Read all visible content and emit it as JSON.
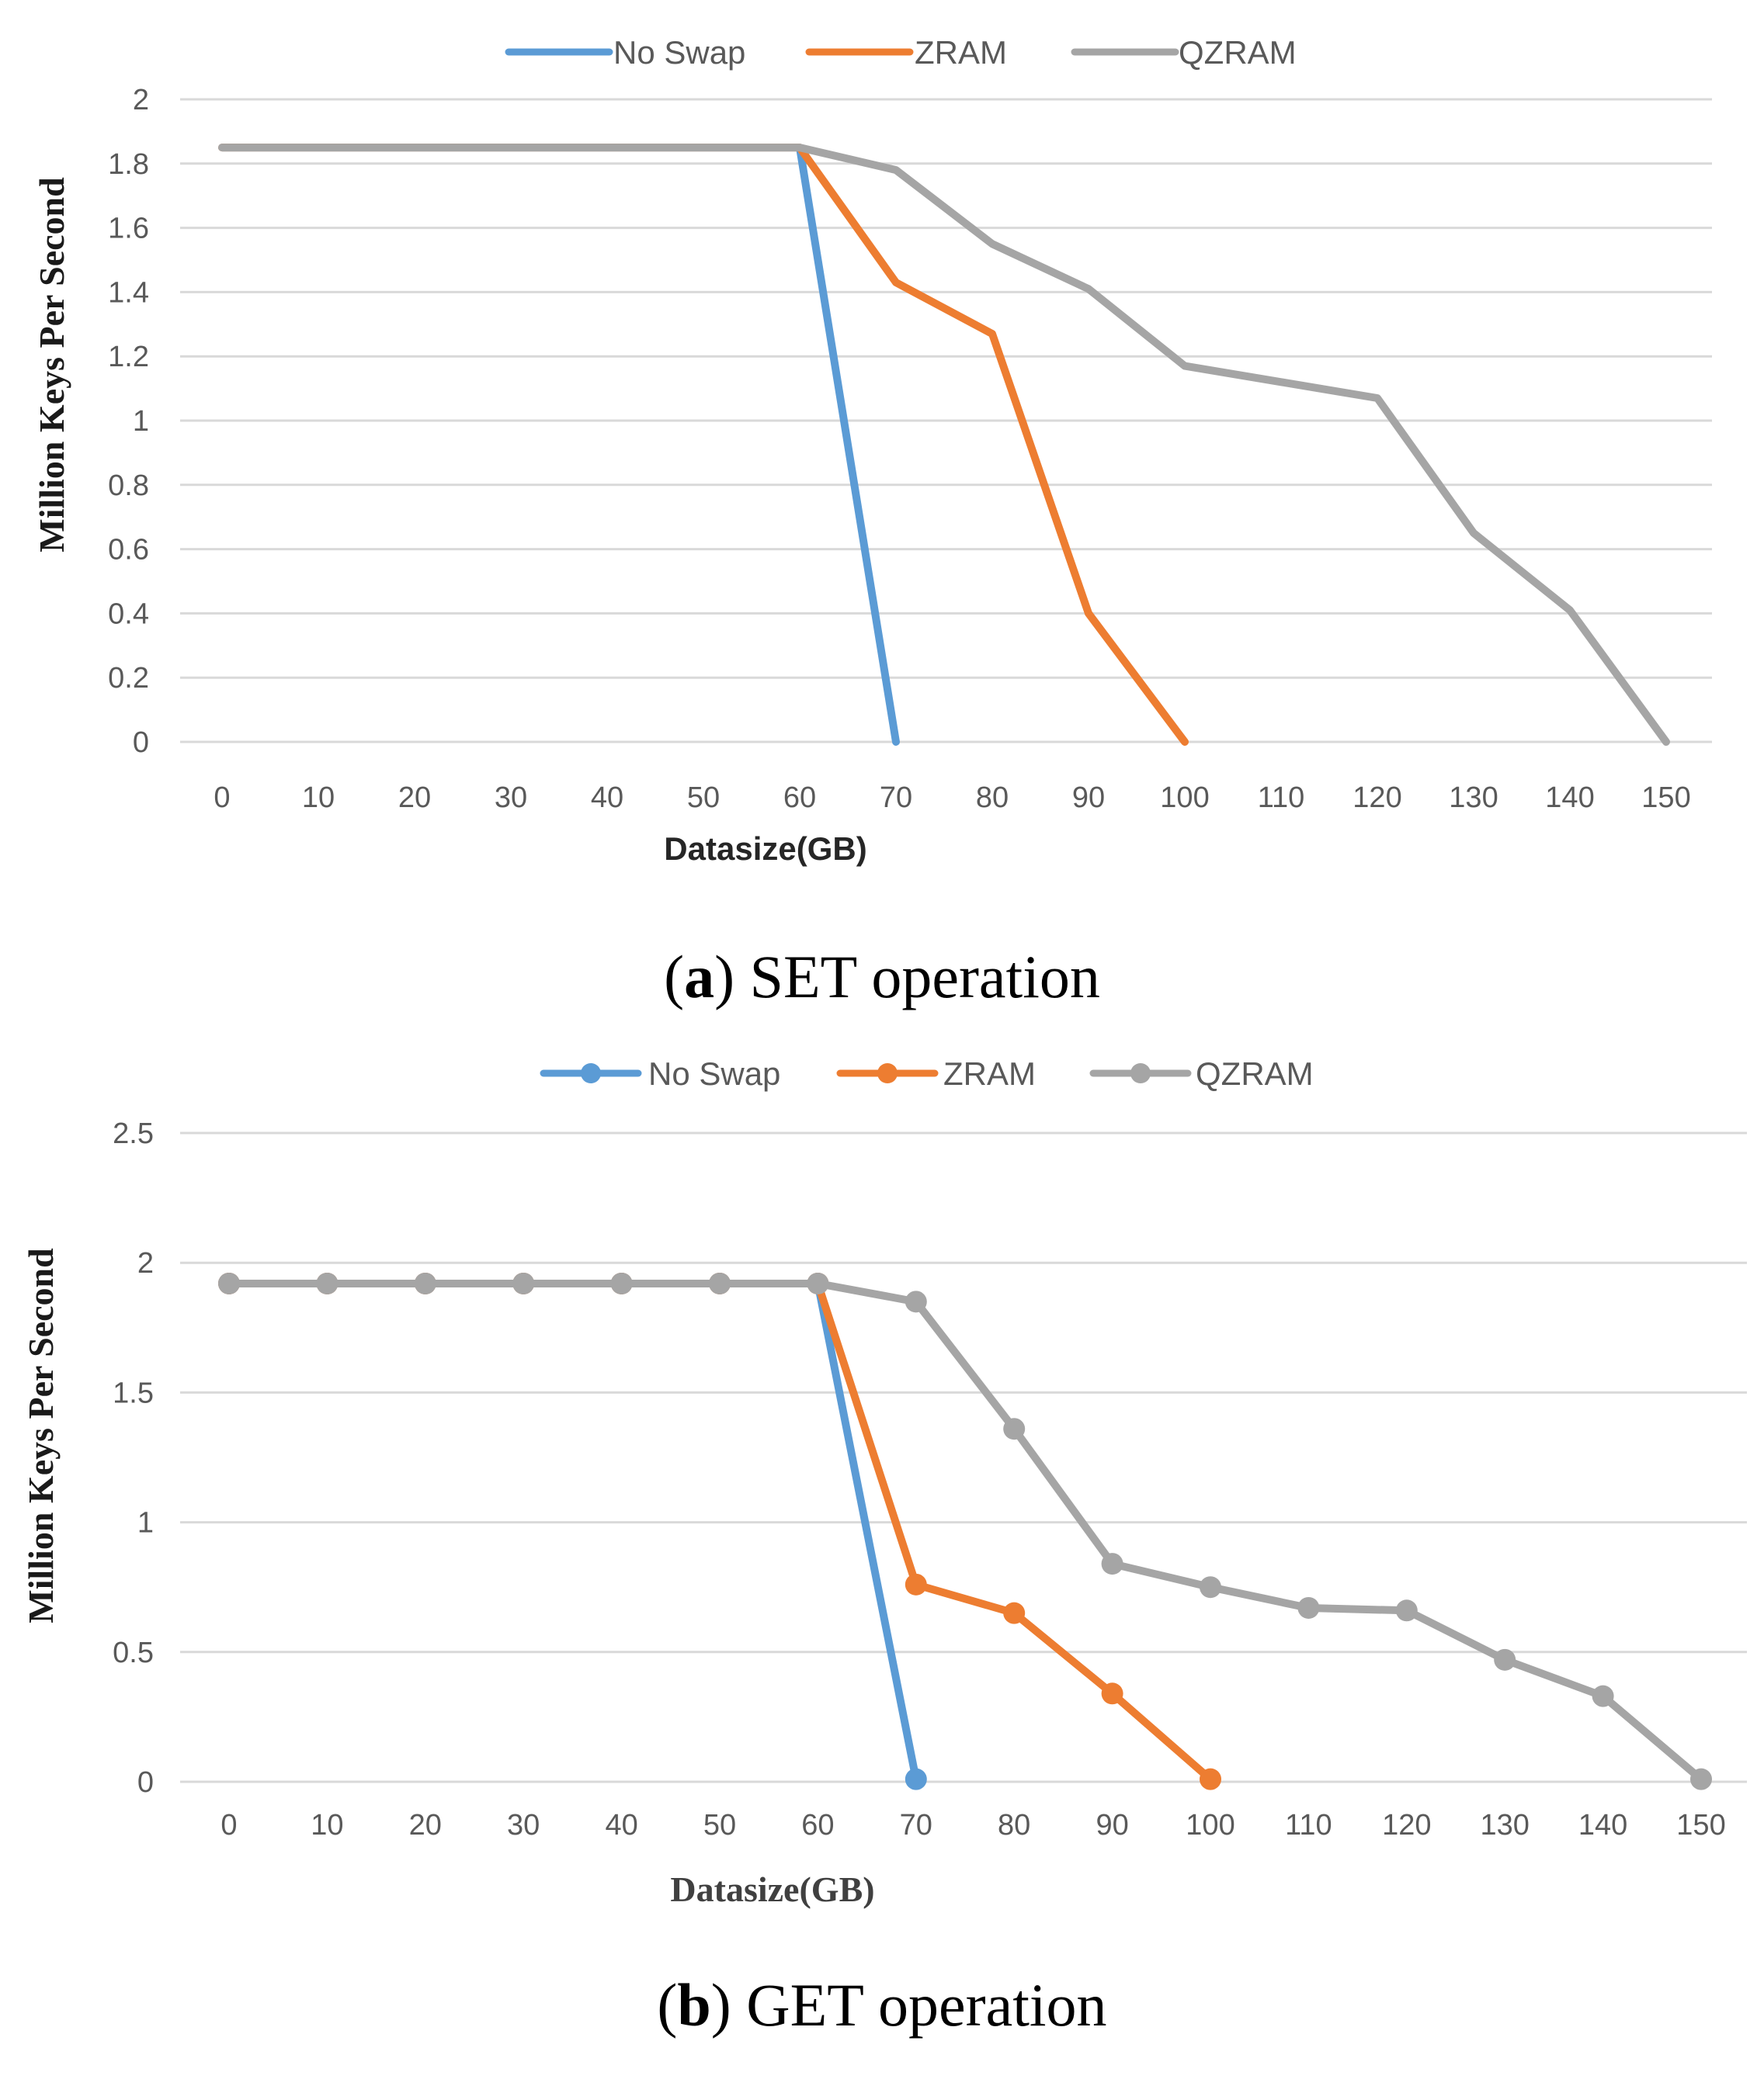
{
  "chart_data": [
    {
      "id": "chart_a",
      "type": "line",
      "caption": {
        "letter": "a",
        "text": "SET operation"
      },
      "xlabel": "Datasize(GB)",
      "ylabel": "Million Keys Per Second",
      "x": [
        0,
        10,
        20,
        30,
        40,
        50,
        60,
        70,
        80,
        90,
        100,
        110,
        120,
        130,
        140,
        150
      ],
      "ylim": [
        0,
        2
      ],
      "yticks": [
        "0",
        "0.2",
        "0.4",
        "0.6",
        "0.8",
        "1",
        "1.2",
        "1.4",
        "1.6",
        "1.8",
        "2"
      ],
      "ytick_values": [
        0,
        0.2,
        0.4,
        0.6,
        0.8,
        1,
        1.2,
        1.4,
        1.6,
        1.8,
        2
      ],
      "markers": false,
      "grid": true,
      "legend_position": "top",
      "series": [
        {
          "name": "No Swap",
          "color": "#5b9bd5",
          "values": [
            1.85,
            1.85,
            1.85,
            1.85,
            1.85,
            1.85,
            1.85,
            0,
            null,
            null,
            null,
            null,
            null,
            null,
            null,
            null
          ]
        },
        {
          "name": "ZRAM",
          "color": "#ed7d31",
          "values": [
            1.85,
            1.85,
            1.85,
            1.85,
            1.85,
            1.85,
            1.85,
            1.43,
            1.27,
            0.4,
            0,
            null,
            null,
            null,
            null,
            null
          ]
        },
        {
          "name": "QZRAM",
          "color": "#a5a5a5",
          "values": [
            1.85,
            1.85,
            1.85,
            1.85,
            1.85,
            1.85,
            1.85,
            1.78,
            1.55,
            1.41,
            1.17,
            1.12,
            1.07,
            0.65,
            0.41,
            0
          ]
        }
      ]
    },
    {
      "id": "chart_b",
      "type": "line",
      "caption": {
        "letter": "b",
        "text": "GET operation"
      },
      "xlabel": "Datasize(GB)",
      "ylabel": "Million Keys Per Second",
      "x": [
        0,
        10,
        20,
        30,
        40,
        50,
        60,
        70,
        80,
        90,
        100,
        110,
        120,
        130,
        140,
        150
      ],
      "ylim": [
        0,
        2.5
      ],
      "yticks": [
        "0",
        "0.5",
        "1",
        "1.5",
        "2",
        "2.5"
      ],
      "ytick_values": [
        0,
        0.5,
        1,
        1.5,
        2,
        2.5
      ],
      "markers": true,
      "grid": true,
      "legend_position": "top",
      "series": [
        {
          "name": "No Swap",
          "color": "#5b9bd5",
          "values": [
            1.92,
            1.92,
            1.92,
            1.92,
            1.92,
            1.92,
            1.92,
            0.01,
            null,
            null,
            null,
            null,
            null,
            null,
            null,
            null
          ]
        },
        {
          "name": "ZRAM",
          "color": "#ed7d31",
          "values": [
            1.92,
            1.92,
            1.92,
            1.92,
            1.92,
            1.92,
            1.92,
            0.76,
            0.65,
            0.34,
            0.01,
            null,
            null,
            null,
            null,
            null
          ]
        },
        {
          "name": "QZRAM",
          "color": "#a5a5a5",
          "values": [
            1.92,
            1.92,
            1.92,
            1.92,
            1.92,
            1.92,
            1.92,
            1.85,
            1.36,
            0.84,
            0.75,
            0.67,
            0.66,
            0.47,
            0.33,
            0.01
          ]
        }
      ]
    }
  ]
}
